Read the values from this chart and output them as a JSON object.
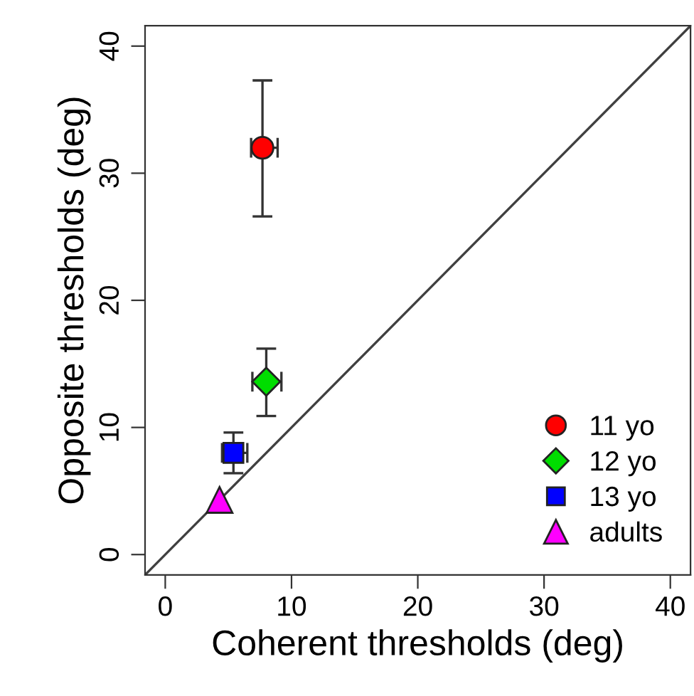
{
  "chart_data": {
    "type": "scatter",
    "xlabel": "Coherent thresholds (deg)",
    "ylabel": "Opposite thresholds (deg)",
    "xlim": [
      -1.6,
      41.6
    ],
    "ylim": [
      -1.6,
      41.6
    ],
    "xticks": [
      0,
      10,
      20,
      30,
      40
    ],
    "yticks": [
      0,
      10,
      20,
      30,
      40
    ],
    "grid": false,
    "legend": "bottom right",
    "series": [
      {
        "type": "line",
        "color": "#404040",
        "x": [
          -1.6,
          41.6
        ],
        "values": [
          -1.6,
          41.6
        ]
      },
      {
        "name": "11 yo",
        "color": "#ff0000",
        "marker": "circle",
        "x": [
          7.7
        ],
        "values": [
          32.0
        ],
        "errors": [
          [
            26.6,
            37.3
          ]
        ],
        "xerrors": [
          [
            6.8,
            8.9
          ]
        ]
      },
      {
        "name": "12 yo",
        "color": "#00dd00",
        "marker": "diamond",
        "x": [
          8.0
        ],
        "values": [
          13.6
        ],
        "errors": [
          [
            10.9,
            16.2
          ]
        ],
        "xerrors": [
          [
            6.9,
            9.2
          ]
        ]
      },
      {
        "name": "13 yo",
        "color": "#0000ff",
        "marker": "square",
        "x": [
          5.4
        ],
        "values": [
          8.0
        ],
        "errors": [
          [
            6.4,
            9.6
          ]
        ],
        "xerrors": [
          [
            4.5,
            6.5
          ]
        ]
      },
      {
        "name": "adults",
        "color": "#ff00ff",
        "marker": "triangle",
        "x": [
          4.3
        ],
        "values": [
          4.3
        ]
      }
    ]
  }
}
